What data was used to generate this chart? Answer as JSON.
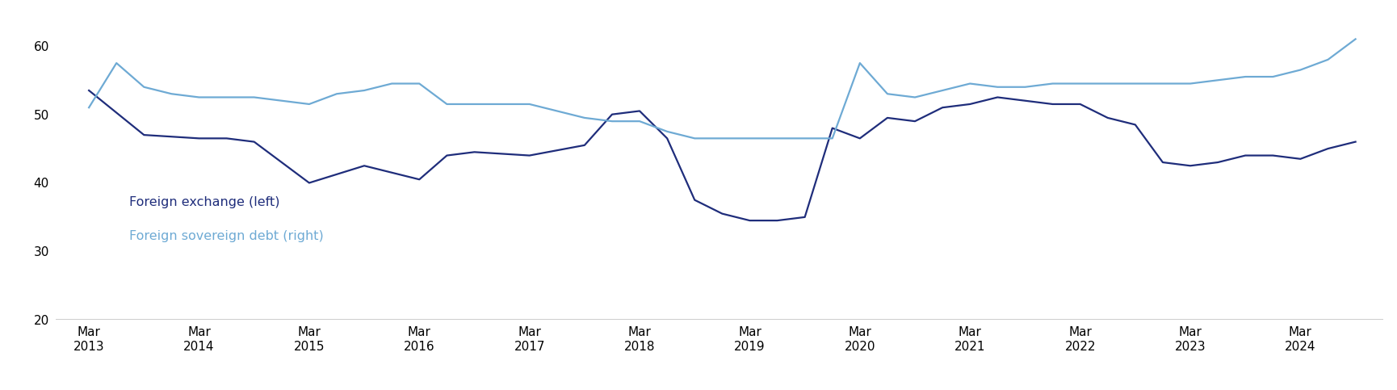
{
  "fx_x": [
    2013.25,
    2013.75,
    2014.25,
    2014.5,
    2014.75,
    2015.25,
    2015.75,
    2016.25,
    2016.5,
    2016.75,
    2017.25,
    2017.75,
    2018.0,
    2018.25,
    2018.5,
    2018.75,
    2019.0,
    2019.25,
    2019.5,
    2019.75,
    2020.0,
    2020.25,
    2020.5,
    2020.75,
    2021.0,
    2021.25,
    2021.5,
    2021.75,
    2022.0,
    2022.25,
    2022.5,
    2022.75,
    2023.0,
    2023.25,
    2023.5,
    2023.75,
    2024.0,
    2024.25,
    2024.5,
    2024.75
  ],
  "fx_y": [
    53.5,
    47.0,
    46.5,
    46.5,
    46.0,
    40.0,
    42.5,
    40.5,
    44.0,
    44.5,
    44.0,
    45.5,
    50.0,
    50.5,
    46.5,
    37.5,
    35.5,
    34.5,
    34.5,
    35.0,
    48.0,
    46.5,
    49.5,
    49.0,
    51.0,
    51.5,
    52.5,
    52.0,
    51.5,
    51.5,
    49.5,
    48.5,
    43.0,
    42.5,
    43.0,
    44.0,
    44.0,
    43.5,
    45.0,
    46.0
  ],
  "sov_x": [
    2013.25,
    2013.5,
    2013.75,
    2014.0,
    2014.25,
    2014.5,
    2014.75,
    2015.0,
    2015.25,
    2015.5,
    2015.75,
    2016.0,
    2016.25,
    2016.5,
    2016.75,
    2017.0,
    2017.25,
    2017.5,
    2017.75,
    2018.0,
    2018.25,
    2018.5,
    2018.75,
    2019.0,
    2019.25,
    2019.5,
    2019.75,
    2020.0,
    2020.25,
    2020.5,
    2020.75,
    2021.0,
    2021.25,
    2021.5,
    2021.75,
    2022.0,
    2022.25,
    2022.5,
    2022.75,
    2023.0,
    2023.25,
    2023.5,
    2023.75,
    2024.0,
    2024.25,
    2024.5,
    2024.75
  ],
  "sov_y": [
    51.0,
    57.5,
    54.0,
    53.0,
    52.5,
    52.5,
    52.5,
    52.0,
    51.5,
    53.0,
    53.5,
    54.5,
    54.5,
    51.5,
    51.5,
    51.5,
    51.5,
    50.5,
    49.5,
    49.0,
    49.0,
    47.5,
    46.5,
    46.5,
    46.5,
    46.5,
    46.5,
    46.5,
    57.5,
    53.0,
    52.5,
    53.5,
    54.5,
    54.0,
    54.0,
    54.5,
    54.5,
    54.5,
    54.5,
    54.5,
    54.5,
    55.0,
    55.5,
    55.5,
    56.5,
    58.0,
    61.0
  ],
  "fx_color": "#1f2d7b",
  "sov_color": "#6eaad4",
  "legend_fx": "Foreign exchange (left)",
  "legend_sov": "Foreign sovereign debt (right)",
  "ylim": [
    20,
    65
  ],
  "yticks": [
    20,
    30,
    40,
    50,
    60
  ],
  "xtick_positions": [
    2013.25,
    2014.25,
    2015.25,
    2016.25,
    2017.25,
    2018.25,
    2019.25,
    2020.25,
    2021.25,
    2022.25,
    2023.25,
    2024.25
  ],
  "xtick_labels": [
    "Mar\n2013",
    "Mar\n2014",
    "Mar\n2015",
    "Mar\n2016",
    "Mar\n2017",
    "Mar\n2018",
    "Mar\n2019",
    "Mar\n2020",
    "Mar\n2021",
    "Mar\n2022",
    "Mar\n2023",
    "Mar\n2024"
  ],
  "xlim": [
    2012.95,
    2025.0
  ],
  "background_color": "#ffffff",
  "line_width": 1.6
}
